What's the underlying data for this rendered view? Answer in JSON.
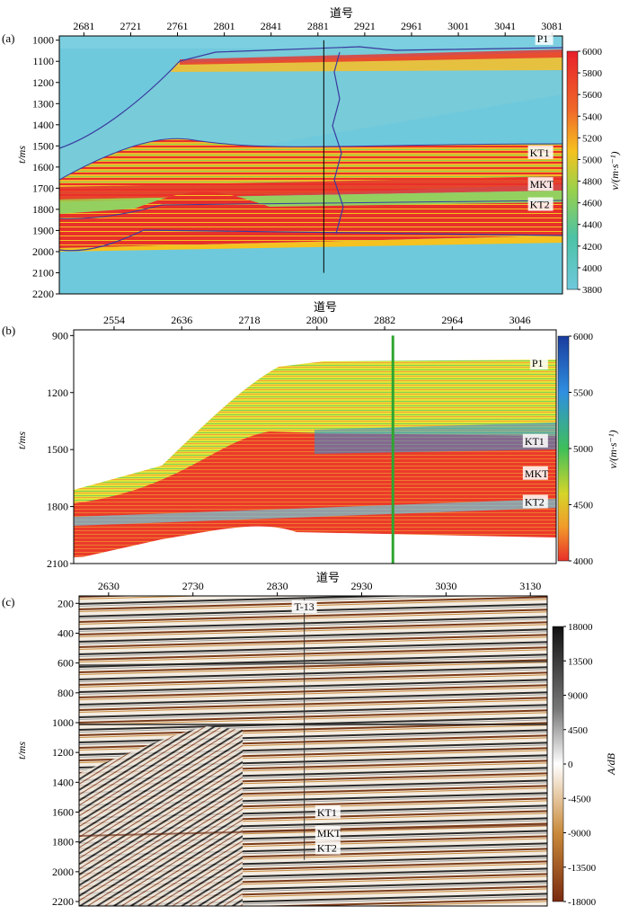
{
  "chart_data": [
    {
      "panel_label": "(a)",
      "type": "heatmap",
      "subject": "velocity section",
      "xlabel": "道号",
      "ylabel": "t/ms",
      "x_ticks": [
        2681,
        2721,
        2761,
        2801,
        2841,
        2881,
        2921,
        2961,
        3001,
        3041,
        3081
      ],
      "y_ticks": [
        1000,
        1100,
        1200,
        1300,
        1400,
        1500,
        1600,
        1700,
        1800,
        1900,
        2000,
        2100,
        2200
      ],
      "xlim": [
        2660,
        3090
      ],
      "ylim": [
        2200,
        980
      ],
      "colorbar": {
        "label": "v/(m·s⁻¹)",
        "ticks": [
          6000,
          5800,
          5600,
          5400,
          5200,
          5000,
          4800,
          4600,
          4400,
          4200,
          4000,
          3800
        ],
        "colors": [
          "#e8202a",
          "#f06a2a",
          "#f5c21f",
          "#9ad14a",
          "#4cc2a5",
          "#6fc9dc"
        ]
      },
      "horizon_labels": [
        {
          "name": "P1",
          "x": 3082,
          "t": 1005
        },
        {
          "name": "KT1",
          "x": 3082,
          "t": 1545
        },
        {
          "name": "MKT",
          "x": 3082,
          "t": 1695
        },
        {
          "name": "KT2",
          "x": 3082,
          "t": 1790
        }
      ],
      "well": {
        "x": 2886,
        "t_top": 1000,
        "t_bottom": 2100
      }
    },
    {
      "panel_label": "(b)",
      "type": "heatmap",
      "subject": "velocity section",
      "xlabel": "道号",
      "ylabel": "t/ms",
      "x_ticks": [
        2554,
        2636,
        2718,
        2800,
        2882,
        2964,
        3046
      ],
      "y_ticks": [
        900,
        1200,
        1500,
        1800,
        2100
      ],
      "xlim": [
        2505,
        3090
      ],
      "ylim": [
        2100,
        870
      ],
      "colorbar": {
        "label": "v/(m·s⁻¹)",
        "ticks": [
          6000,
          5500,
          5000,
          4500,
          4000
        ],
        "colors": [
          "#1a3c9e",
          "#2f8fe0",
          "#3fbf5a",
          "#d5d52a",
          "#f29a2a",
          "#e8302a"
        ]
      },
      "horizon_labels": [
        {
          "name": "P1",
          "x": 3080,
          "t": 1060
        },
        {
          "name": "KT1",
          "x": 3080,
          "t": 1470
        },
        {
          "name": "MKT",
          "x": 3080,
          "t": 1640
        },
        {
          "name": "KT2",
          "x": 3080,
          "t": 1790
        }
      ],
      "well": {
        "x": 2892,
        "t_top": 900,
        "t_bottom": 2100
      }
    },
    {
      "panel_label": "(c)",
      "type": "heatmap",
      "subject": "seismic amplitude section",
      "xlabel": "道号",
      "ylabel": "t/ms",
      "x_ticks": [
        2630,
        2730,
        2830,
        2930,
        3030,
        3130
      ],
      "y_ticks": [
        200,
        400,
        600,
        800,
        1000,
        1200,
        1400,
        1600,
        1800,
        2000,
        2200
      ],
      "xlim": [
        2595,
        3150
      ],
      "ylim": [
        2230,
        150
      ],
      "colorbar": {
        "label": "A/dB",
        "ticks": [
          18000,
          13500,
          9000,
          4500,
          0,
          -4500,
          -9000,
          -13500,
          -18000
        ],
        "colors": [
          "#111111",
          "#777777",
          "#ffffff",
          "#c98a3a",
          "#7a2a10"
        ]
      },
      "well_label": "T-13",
      "horizon_labels": [
        {
          "name": "KT1",
          "x": 2875,
          "t": 1620
        },
        {
          "name": "MKT",
          "x": 2875,
          "t": 1760
        },
        {
          "name": "KT2",
          "x": 2875,
          "t": 1860
        }
      ],
      "well": {
        "x": 2862,
        "t_top": 170,
        "t_bottom": 1920
      }
    }
  ]
}
